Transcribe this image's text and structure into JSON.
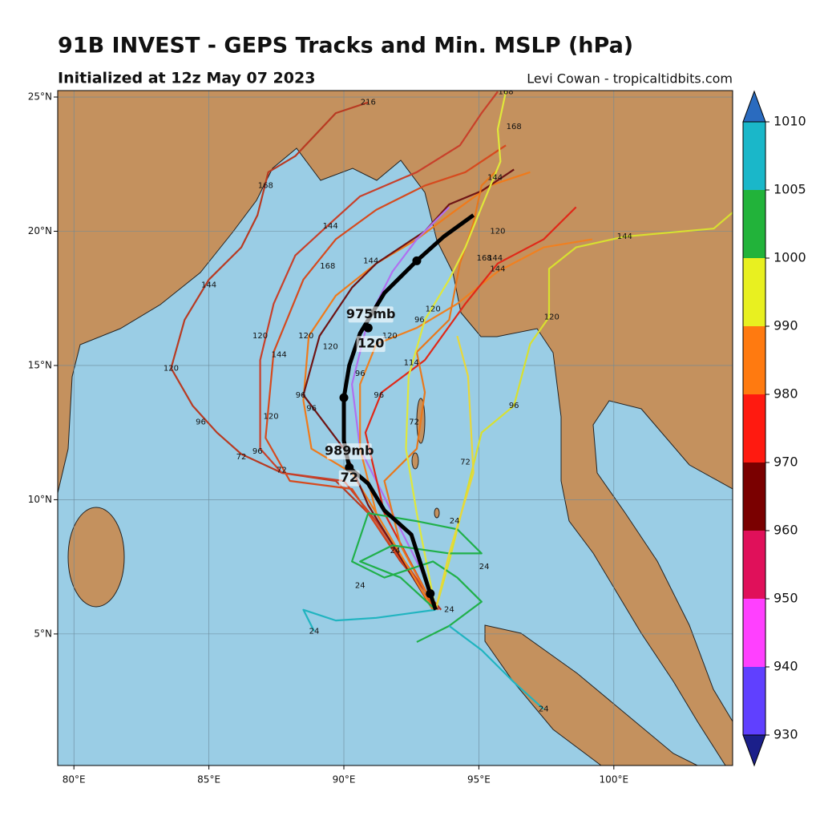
{
  "header": {
    "title": "91B INVEST - GEPS Tracks and Min. MSLP (hPa)",
    "subtitle": "Initialized at 12z May 07 2023",
    "credit": "Levi Cowan - tropicaltidbits.com"
  },
  "map": {
    "xlim": [
      79.4,
      104.4
    ],
    "ylim": [
      0.1,
      25.24
    ],
    "xticks": [
      {
        "value": 80,
        "label": "80°E"
      },
      {
        "value": 85,
        "label": "85°E"
      },
      {
        "value": 90,
        "label": "90°E"
      },
      {
        "value": 95,
        "label": "95°E"
      },
      {
        "value": 100,
        "label": "100°E"
      }
    ],
    "yticks": [
      {
        "value": 5,
        "label": "5°N"
      },
      {
        "value": 10,
        "label": "10°N"
      },
      {
        "value": 15,
        "label": "15°N"
      },
      {
        "value": 20,
        "label": "20°N"
      },
      {
        "value": 25,
        "label": "25°N"
      }
    ],
    "grid": true,
    "ocean_color": "#9acde5",
    "land_color": "#c4915e",
    "tracks": [
      {
        "color": "#b83a22",
        "points": [
          [
            93.6,
            5.9
          ],
          [
            92.1,
            7.7
          ],
          [
            90.9,
            9.5
          ],
          [
            89.7,
            10.7
          ],
          [
            87.7,
            11.0
          ],
          [
            86.2,
            11.7
          ],
          [
            85.3,
            12.5
          ],
          [
            84.4,
            13.5
          ],
          [
            83.6,
            14.9
          ],
          [
            84.1,
            16.7
          ],
          [
            85.0,
            18.2
          ],
          [
            86.2,
            19.4
          ],
          [
            86.8,
            20.6
          ],
          [
            87.2,
            22.2
          ],
          [
            88.2,
            22.8
          ],
          [
            89.7,
            24.4
          ],
          [
            90.9,
            24.8
          ]
        ],
        "labels": [
          {
            "text": "120",
            "at": [
              83.6,
              14.9
            ]
          },
          {
            "text": "96",
            "at": [
              84.7,
              12.9
            ]
          },
          {
            "text": "72",
            "at": [
              86.2,
              11.6
            ]
          },
          {
            "text": "144",
            "at": [
              85.0,
              18.0
            ]
          },
          {
            "text": "168",
            "at": [
              87.1,
              21.7
            ]
          },
          {
            "text": "216",
            "at": [
              90.9,
              24.8
            ]
          }
        ]
      },
      {
        "color": "#c8402a",
        "points": [
          [
            93.5,
            5.9
          ],
          [
            91.2,
            9.2
          ],
          [
            90.0,
            10.7
          ],
          [
            87.7,
            11.0
          ],
          [
            86.9,
            11.9
          ],
          [
            86.9,
            15.2
          ],
          [
            87.4,
            17.3
          ],
          [
            88.2,
            19.1
          ],
          [
            89.5,
            20.3
          ],
          [
            90.6,
            21.3
          ],
          [
            92.7,
            22.2
          ],
          [
            94.3,
            23.2
          ],
          [
            95.1,
            24.4
          ],
          [
            95.7,
            25.2
          ]
        ],
        "labels": [
          {
            "text": "120",
            "at": [
              86.9,
              16.1
            ]
          },
          {
            "text": "144",
            "at": [
              89.5,
              20.2
            ]
          },
          {
            "text": "72",
            "at": [
              87.7,
              11.1
            ]
          }
        ]
      },
      {
        "color": "#d64a1e",
        "points": [
          [
            93.4,
            5.9
          ],
          [
            90.9,
            9.5
          ],
          [
            90.3,
            10.4
          ],
          [
            88.0,
            10.7
          ],
          [
            87.1,
            12.3
          ],
          [
            87.4,
            15.5
          ],
          [
            88.5,
            18.2
          ],
          [
            89.7,
            19.7
          ],
          [
            91.2,
            20.8
          ],
          [
            93.0,
            21.7
          ],
          [
            94.5,
            22.2
          ],
          [
            96.0,
            23.2
          ]
        ],
        "labels": [
          {
            "text": "144",
            "at": [
              87.6,
              15.4
            ]
          },
          {
            "text": "120",
            "at": [
              87.3,
              13.1
            ]
          },
          {
            "text": "96",
            "at": [
              86.8,
              11.8
            ]
          },
          {
            "text": "168",
            "at": [
              96.3,
              23.9
            ]
          }
        ]
      },
      {
        "color": "#f07a1a",
        "points": [
          [
            93.3,
            5.9
          ],
          [
            91.2,
            9.5
          ],
          [
            90.3,
            11.0
          ],
          [
            88.8,
            11.9
          ],
          [
            88.5,
            13.7
          ],
          [
            88.7,
            16.1
          ],
          [
            89.7,
            17.6
          ],
          [
            91.2,
            18.8
          ],
          [
            92.7,
            19.7
          ],
          [
            93.9,
            20.6
          ],
          [
            95.4,
            21.7
          ],
          [
            96.9,
            22.2
          ]
        ],
        "labels": [
          {
            "text": "120",
            "at": [
              88.6,
              16.1
            ]
          },
          {
            "text": "96",
            "at": [
              88.8,
              13.4
            ]
          },
          {
            "text": "168",
            "at": [
              89.4,
              18.7
            ]
          }
        ]
      },
      {
        "color": "#6e1414",
        "points": [
          [
            93.3,
            5.9
          ],
          [
            90.9,
            9.8
          ],
          [
            90.0,
            11.9
          ],
          [
            88.5,
            13.9
          ],
          [
            89.1,
            16.1
          ],
          [
            90.3,
            17.9
          ],
          [
            91.2,
            18.8
          ],
          [
            93.0,
            20.0
          ],
          [
            93.9,
            21.0
          ],
          [
            95.1,
            21.5
          ],
          [
            96.3,
            22.3
          ]
        ],
        "labels": [
          {
            "text": "96",
            "at": [
              88.4,
              13.9
            ]
          },
          {
            "text": "120",
            "at": [
              89.5,
              15.7
            ]
          },
          {
            "text": "144",
            "at": [
              91.0,
              18.9
            ]
          }
        ]
      },
      {
        "color": "#b070f0",
        "points": [
          [
            93.3,
            6.5
          ],
          [
            90.6,
            11.9
          ],
          [
            90.3,
            14.3
          ],
          [
            90.9,
            16.7
          ],
          [
            91.8,
            18.5
          ],
          [
            92.7,
            19.7
          ],
          [
            93.9,
            20.9
          ]
        ],
        "labels": []
      },
      {
        "color": "#f08020",
        "points": [
          [
            93.3,
            5.9
          ],
          [
            91.2,
            9.5
          ],
          [
            90.6,
            11.9
          ],
          [
            90.6,
            14.3
          ],
          [
            91.2,
            15.8
          ],
          [
            92.7,
            16.4
          ],
          [
            94.2,
            17.3
          ],
          [
            95.7,
            18.5
          ],
          [
            97.4,
            19.4
          ],
          [
            99.2,
            19.7
          ]
        ],
        "labels": [
          {
            "text": "120",
            "at": [
              91.7,
              16.1
            ]
          },
          {
            "text": "144",
            "at": [
              95.6,
              19.0
            ]
          },
          {
            "text": "96",
            "at": [
              90.6,
              14.7
            ]
          },
          {
            "text": "168",
            "at": [
              95.2,
              19.0
            ]
          }
        ]
      },
      {
        "color": "#e02818",
        "points": [
          [
            93.4,
            5.9
          ],
          [
            91.5,
            9.5
          ],
          [
            90.8,
            12.5
          ],
          [
            91.4,
            14.0
          ],
          [
            93.0,
            15.2
          ],
          [
            94.5,
            17.3
          ],
          [
            95.7,
            18.8
          ],
          [
            97.4,
            19.7
          ],
          [
            98.6,
            20.9
          ]
        ],
        "labels": [
          {
            "text": "96",
            "at": [
              91.3,
              13.9
            ]
          },
          {
            "text": "114",
            "at": [
              92.5,
              15.1
            ]
          },
          {
            "text": "144",
            "at": [
              95.7,
              18.6
            ]
          }
        ]
      },
      {
        "color": "#e8781c",
        "points": [
          [
            93.4,
            5.9
          ],
          [
            92.1,
            8.3
          ],
          [
            91.5,
            10.7
          ],
          [
            92.7,
            11.9
          ],
          [
            93.0,
            14.0
          ],
          [
            92.7,
            15.5
          ],
          [
            93.9,
            16.7
          ],
          [
            94.3,
            18.8
          ],
          [
            94.8,
            20.3
          ],
          [
            95.1,
            21.7
          ],
          [
            95.7,
            22.3
          ]
        ],
        "labels": [
          {
            "text": "72",
            "at": [
              92.6,
              12.9
            ]
          },
          {
            "text": "96",
            "at": [
              92.8,
              16.7
            ]
          },
          {
            "text": "120",
            "at": [
              93.3,
              17.1
            ]
          }
        ]
      },
      {
        "color": "#d8e030",
        "points": [
          [
            93.4,
            5.9
          ],
          [
            93.9,
            7.7
          ],
          [
            94.5,
            10.1
          ],
          [
            95.1,
            12.5
          ],
          [
            96.3,
            13.5
          ],
          [
            96.9,
            15.8
          ],
          [
            97.6,
            16.8
          ],
          [
            97.6,
            18.6
          ],
          [
            98.6,
            19.4
          ],
          [
            100.4,
            19.8
          ],
          [
            103.7,
            20.1
          ],
          [
            104.4,
            20.7
          ]
        ],
        "labels": [
          {
            "text": "96",
            "at": [
              96.3,
              13.5
            ]
          },
          {
            "text": "120",
            "at": [
              97.7,
              16.8
            ]
          },
          {
            "text": "144",
            "at": [
              100.4,
              19.8
            ]
          }
        ]
      },
      {
        "color": "#e0e83a",
        "points": [
          [
            93.4,
            5.9
          ],
          [
            92.7,
            9.5
          ],
          [
            92.3,
            11.9
          ],
          [
            92.4,
            14.6
          ],
          [
            93.0,
            16.7
          ],
          [
            93.9,
            18.2
          ],
          [
            94.5,
            19.4
          ],
          [
            95.1,
            20.9
          ],
          [
            95.8,
            22.6
          ],
          [
            95.7,
            23.8
          ],
          [
            96.0,
            25.2
          ]
        ],
        "labels": [
          {
            "text": "168",
            "at": [
              96.0,
              25.2
            ]
          },
          {
            "text": "144",
            "at": [
              95.6,
              22.0
            ]
          },
          {
            "text": "120",
            "at": [
              95.7,
              20.0
            ]
          }
        ]
      },
      {
        "color": "#20b04a",
        "points": [
          [
            93.4,
            5.9
          ],
          [
            92.1,
            7.1
          ],
          [
            90.6,
            7.7
          ],
          [
            91.8,
            8.3
          ],
          [
            93.9,
            8.0
          ],
          [
            95.1,
            8.0
          ],
          [
            94.2,
            8.9
          ],
          [
            92.7,
            9.2
          ],
          [
            90.9,
            9.5
          ],
          [
            90.3,
            7.7
          ],
          [
            91.5,
            7.1
          ],
          [
            93.3,
            7.7
          ],
          [
            94.2,
            7.1
          ],
          [
            95.1,
            6.2
          ],
          [
            93.9,
            5.3
          ],
          [
            92.7,
            4.7
          ]
        ],
        "labels": [
          {
            "text": "24",
            "at": [
              91.9,
              8.1
            ]
          },
          {
            "text": "24",
            "at": [
              90.6,
              6.8
            ]
          },
          {
            "text": "24",
            "at": [
              94.1,
              9.2
            ]
          },
          {
            "text": "24",
            "at": [
              95.2,
              7.5
            ]
          },
          {
            "text": "24",
            "at": [
              93.9,
              5.9
            ]
          }
        ]
      },
      {
        "color": "#20b4c0",
        "points": [
          [
            93.4,
            5.9
          ],
          [
            91.2,
            5.6
          ],
          [
            89.7,
            5.5
          ],
          [
            88.5,
            5.9
          ],
          [
            88.9,
            5.1
          ]
        ],
        "labels": [
          {
            "text": "24",
            "at": [
              88.9,
              5.1
            ]
          }
        ]
      },
      {
        "color": "#20b4c0",
        "points": [
          [
            93.9,
            5.3
          ],
          [
            95.1,
            4.4
          ],
          [
            96.3,
            3.2
          ],
          [
            97.4,
            2.2
          ]
        ],
        "labels": [
          {
            "text": "24",
            "at": [
              97.4,
              2.2
            ]
          }
        ]
      },
      {
        "color": "#e8d83a",
        "points": [
          [
            93.4,
            5.9
          ],
          [
            93.9,
            8.0
          ],
          [
            94.8,
            11.0
          ],
          [
            94.6,
            14.6
          ],
          [
            94.2,
            16.1
          ]
        ],
        "labels": [
          {
            "text": "72",
            "at": [
              94.5,
              11.4
            ]
          }
        ]
      }
    ],
    "mean_track": {
      "color": "#000000",
      "points": [
        [
          93.4,
          5.9
        ],
        [
          93.2,
          6.5
        ],
        [
          92.5,
          8.7
        ],
        [
          91.5,
          9.6
        ],
        [
          90.9,
          10.6
        ],
        [
          90.2,
          11.2
        ],
        [
          90.0,
          12.2
        ],
        [
          90.0,
          13.8
        ],
        [
          90.2,
          15.0
        ],
        [
          90.6,
          16.2
        ],
        [
          90.9,
          16.7
        ],
        [
          91.5,
          17.7
        ],
        [
          92.1,
          18.3
        ],
        [
          92.7,
          18.9
        ],
        [
          93.7,
          19.8
        ],
        [
          94.8,
          20.6
        ]
      ],
      "dots": [
        [
          93.2,
          6.5
        ],
        [
          90.2,
          11.2
        ],
        [
          90.0,
          13.8
        ],
        [
          90.9,
          16.4
        ],
        [
          92.7,
          18.9
        ]
      ]
    },
    "annotations": [
      {
        "text": "975mb",
        "at": [
          91.0,
          16.9
        ]
      },
      {
        "text": "120",
        "at": [
          91.0,
          15.8
        ]
      },
      {
        "text": "989mb",
        "at": [
          90.2,
          11.8
        ]
      },
      {
        "text": "72",
        "at": [
          90.2,
          10.8
        ]
      }
    ]
  },
  "colorbar": {
    "ticks": [
      930,
      940,
      950,
      960,
      970,
      980,
      990,
      1000,
      1005,
      1010
    ],
    "colors": [
      "#6040ff",
      "#ff40ff",
      "#e0105a",
      "#7a0000",
      "#ff1a10",
      "#ff7a10",
      "#e8f020",
      "#22b33a",
      "#1ab7c9"
    ],
    "under": "#1b1f8a",
    "over": "#2a6bbf"
  }
}
